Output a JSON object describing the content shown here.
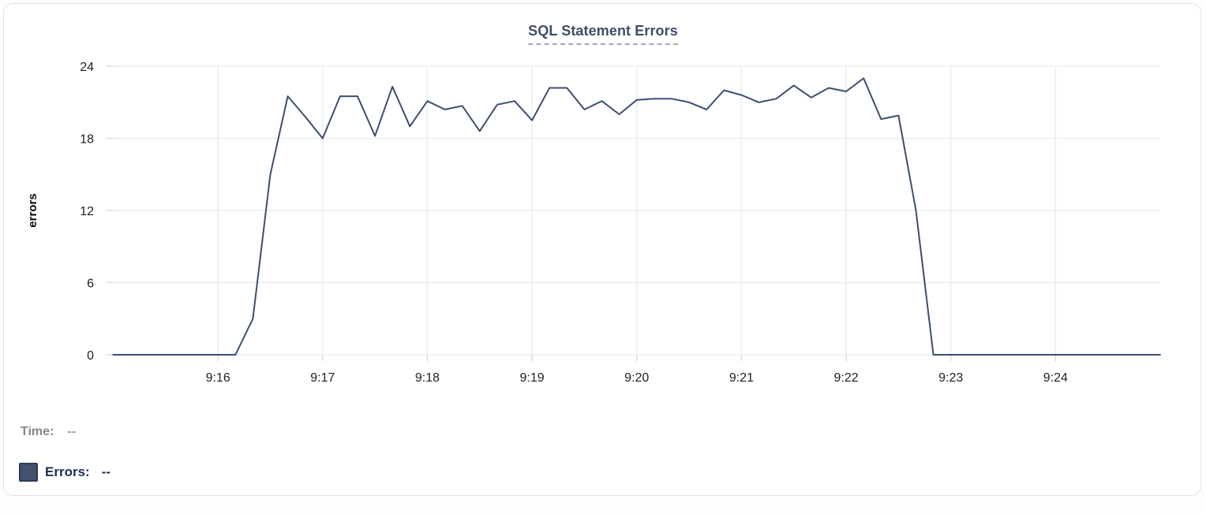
{
  "chart": {
    "title": "SQL Statement Errors"
  },
  "readouts": {
    "time_label": "Time:",
    "time_value": "--",
    "errors_label": "Errors:",
    "errors_value": "--"
  },
  "colors": {
    "line": "#3e4e70",
    "grid": "#ebedf0",
    "tick": "#d9dbdf",
    "axis_text": "#202124",
    "title": "#3e4c68",
    "title_underline": "#9aa4b8",
    "time_text": "#85878b",
    "time_value": "#97999e",
    "errors_text": "#1f2d55",
    "swatch": "#44526e",
    "swatch_border": "#2b3a5c",
    "card_border": "#e2e4e8"
  },
  "chart_data": {
    "type": "line",
    "title": "SQL Statement Errors",
    "xlabel": "",
    "ylabel": "errors",
    "ylim": [
      0,
      24
    ],
    "y_ticks": [
      0,
      6,
      12,
      18,
      24
    ],
    "x_tick_labels": [
      "9:16",
      "9:17",
      "9:18",
      "9:19",
      "9:20",
      "9:21",
      "9:22",
      "9:23",
      "9:24"
    ],
    "x_range": [
      "9:15:00",
      "9:25:00"
    ],
    "grid": true,
    "legend_position": "bottom-left",
    "x": [
      "9:15:00",
      "9:15:10",
      "9:15:20",
      "9:15:30",
      "9:15:40",
      "9:15:50",
      "9:16:00",
      "9:16:10",
      "9:16:20",
      "9:16:30",
      "9:16:40",
      "9:16:50",
      "9:17:00",
      "9:17:10",
      "9:17:20",
      "9:17:30",
      "9:17:40",
      "9:17:50",
      "9:18:00",
      "9:18:10",
      "9:18:20",
      "9:18:30",
      "9:18:40",
      "9:18:50",
      "9:19:00",
      "9:19:10",
      "9:19:20",
      "9:19:30",
      "9:19:40",
      "9:19:50",
      "9:20:00",
      "9:20:10",
      "9:20:20",
      "9:20:30",
      "9:20:40",
      "9:20:50",
      "9:21:00",
      "9:21:10",
      "9:21:20",
      "9:21:30",
      "9:21:40",
      "9:21:50",
      "9:22:00",
      "9:22:10",
      "9:22:20",
      "9:22:30",
      "9:22:40",
      "9:22:50",
      "9:23:00",
      "9:23:10",
      "9:23:20",
      "9:23:30",
      "9:23:40",
      "9:23:50",
      "9:24:00",
      "9:24:10",
      "9:24:20",
      "9:24:30",
      "9:24:40",
      "9:24:50",
      "9:25:00"
    ],
    "series": [
      {
        "name": "Errors",
        "color": "#3e4e70",
        "values": [
          0,
          0,
          0,
          0,
          0,
          0,
          0,
          0,
          3,
          15,
          21.5,
          19.8,
          18,
          21.5,
          21.5,
          18.2,
          22.3,
          19,
          21.1,
          20.4,
          20.7,
          18.6,
          20.8,
          21.1,
          19.5,
          22.2,
          22.2,
          20.4,
          21.1,
          20,
          21.2,
          21.3,
          21.3,
          21,
          20.4,
          22,
          21.6,
          21,
          21.3,
          22.4,
          21.4,
          22.2,
          21.9,
          23,
          19.6,
          19.9,
          12,
          0,
          0,
          0,
          0,
          0,
          0,
          0,
          0,
          0,
          0,
          0,
          0,
          0,
          0
        ]
      }
    ]
  }
}
